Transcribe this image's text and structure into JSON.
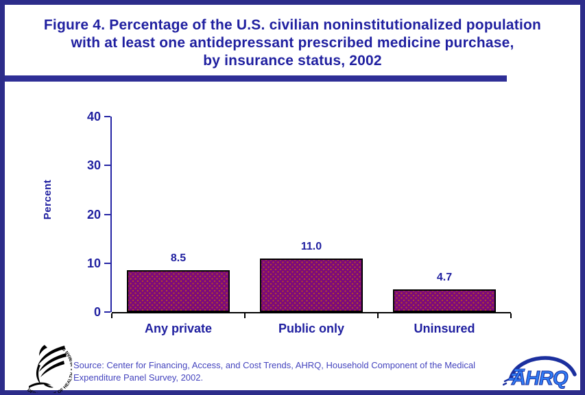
{
  "frame": {
    "border_color": "#2C2C8A",
    "rule_color": "#2E2E96",
    "background": "#FFFFFF"
  },
  "title": {
    "lines": [
      "Figure 4. Percentage of the U.S. civilian noninstitutionalized population",
      "with at least one antidepressant prescribed medicine purchase,",
      "by insurance status, 2002"
    ],
    "color": "#2020A0"
  },
  "chart_data": {
    "type": "bar",
    "title": "Figure 4. Percentage of the U.S. civilian noninstitutionalized population with at least one antidepressant prescribed medicine purchase, by insurance status, 2002",
    "categories": [
      "Any private",
      "Public only",
      "Uninsured"
    ],
    "values": [
      8.5,
      11.0,
      4.7
    ],
    "value_labels": [
      "8.5",
      "11.0",
      "4.7"
    ],
    "xlabel": "",
    "ylabel": "Percent",
    "ylim": [
      0,
      40
    ],
    "yticks": [
      0,
      10,
      20,
      30,
      40
    ],
    "grid": false,
    "legend": false,
    "bar_color": "#7C0A7C",
    "bar_pattern": "orange-dot-texture",
    "bar_border_color": "#000000",
    "axis_color": "#2525A5",
    "baseline_color": "#000000",
    "label_color": "#2020A0"
  },
  "footer": {
    "source_lines": [
      "Source: Center for Financing, Access, and Cost Trends, AHRQ, Household Component of the Medical",
      "Expenditure Panel Survey, 2002."
    ],
    "source_color": "#4444BE",
    "hhs_logo": "hhs-eagle-logo",
    "hhs_circle_text": "DEPARTMENT OF HEALTH & HUMAN SERVICES • USA",
    "ahrq_text": "AHRQ",
    "ahrq_blue": "#2F7DF6",
    "ahrq_navy": "#1B2F9E"
  }
}
